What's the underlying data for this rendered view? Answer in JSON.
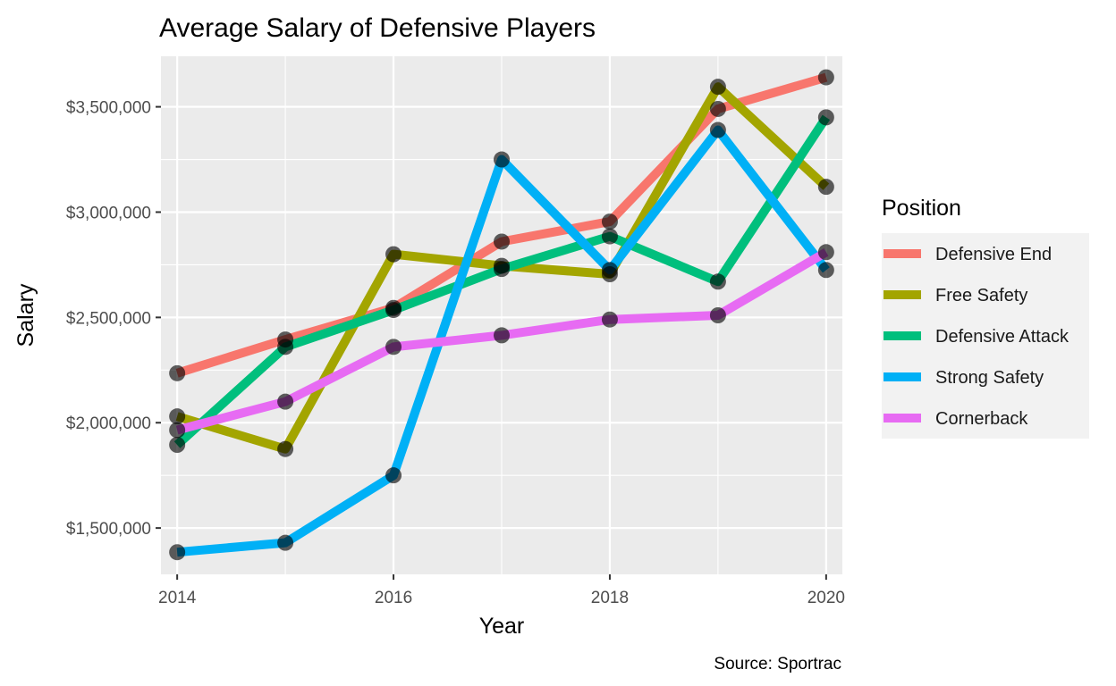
{
  "chart_data": {
    "type": "line",
    "title": "Average Salary of Defensive Players",
    "xlabel": "Year",
    "ylabel": "Salary",
    "caption": "Source: Sportrac",
    "x": [
      2014,
      2015,
      2016,
      2017,
      2018,
      2019,
      2020
    ],
    "x_ticks": [
      2014,
      2016,
      2018,
      2020
    ],
    "x_tick_labels": [
      "2014",
      "2016",
      "2018",
      "2020"
    ],
    "xlim": [
      2013.85,
      2020.15
    ],
    "y_ticks": [
      1500000,
      2000000,
      2500000,
      3000000,
      3500000
    ],
    "y_tick_labels": [
      "$1,500,000",
      "$2,000,000",
      "$2,500,000",
      "$3,000,000",
      "$3,500,000"
    ],
    "ylim": [
      1280000,
      3740000
    ],
    "grid": true,
    "legend": {
      "title": "Position",
      "placement": "right"
    },
    "series": [
      {
        "name": "Defensive End",
        "color": "#F8766D",
        "values": [
          2235000,
          2395000,
          2545000,
          2860000,
          2955000,
          3490000,
          3640000
        ]
      },
      {
        "name": "Free Safety",
        "color": "#A3A500",
        "values": [
          2030000,
          1875000,
          2800000,
          2745000,
          2705000,
          3595000,
          3120000
        ]
      },
      {
        "name": "Defensive Attack",
        "color": "#00BF7D",
        "values": [
          1895000,
          2360000,
          2535000,
          2730000,
          2885000,
          2670000,
          3450000
        ]
      },
      {
        "name": "Strong Safety",
        "color": "#00B0F6",
        "values": [
          1385000,
          1430000,
          1750000,
          3250000,
          2725000,
          3390000,
          2725000
        ]
      },
      {
        "name": "Cornerback",
        "color": "#E76BF3",
        "values": [
          1965000,
          2100000,
          2360000,
          2415000,
          2490000,
          2510000,
          2810000
        ]
      }
    ]
  }
}
